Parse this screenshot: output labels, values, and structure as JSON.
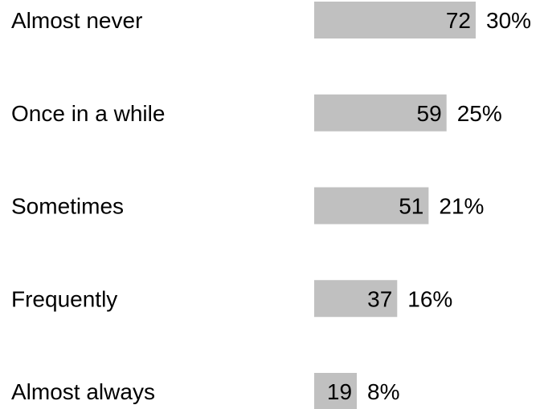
{
  "chart_data": {
    "type": "bar",
    "orientation": "horizontal",
    "categories": [
      "Almost never",
      "Once in a while",
      "Sometimes",
      "Frequently",
      "Almost always"
    ],
    "values": [
      72,
      59,
      51,
      37,
      19
    ],
    "percentages": [
      "30%",
      "25%",
      "21%",
      "16%",
      "8%"
    ],
    "title": "",
    "xlabel": "",
    "ylabel": "",
    "grid": false,
    "legend": "none",
    "bar_color": "#c0c0c0"
  }
}
